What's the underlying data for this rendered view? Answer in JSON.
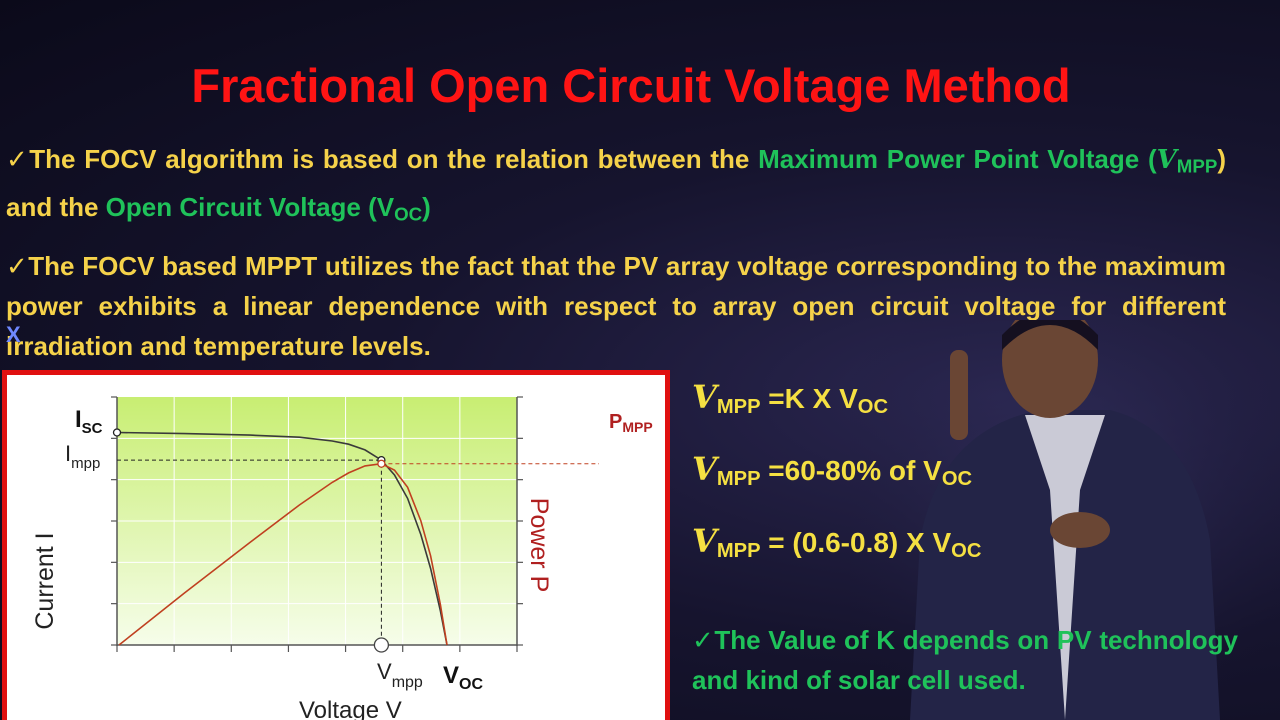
{
  "slide": {
    "title": "Fractional Open Circuit Voltage Method",
    "bullet1": {
      "check": "✓",
      "text_a": "The FOCV algorithm is based on the relation between the ",
      "text_b": "Maximum Power Point",
      "text_c": "Voltage (",
      "v_symbol": "V",
      "v_sub": "MPP",
      "text_d": ") and the ",
      "text_e": "Open Circuit Voltage (V",
      "voc_sub": "OC",
      "text_f": ")"
    },
    "bullet2": {
      "check": "✓",
      "text": "The FOCV based MPPT utilizes the fact that the PV array voltage corresponding to the maximum power exhibits a linear dependence with respect to array open circuit voltage for different irradiation and temperature levels."
    },
    "stray_mark": "X",
    "formulas": [
      {
        "v": "V",
        "sub": "MPP",
        "rest": " =K X V",
        "sub2": "OC",
        "tail": ""
      },
      {
        "v": "V",
        "sub": "MPP",
        "rest": " =60-80% of V",
        "sub2": "OC",
        "tail": ""
      },
      {
        "v": "V",
        "sub": "MPP",
        "rest": " = (0.6-0.8) X V",
        "sub2": "OC",
        "tail": ""
      }
    ],
    "note": {
      "check": "✓",
      "text": "The Value of K depends on PV technology and kind of solar cell used."
    }
  },
  "chart_data": {
    "type": "line",
    "xlabel": "Voltage V",
    "ylabel_left": "Current I",
    "ylabel_right": "Power P",
    "x_markers": [
      {
        "label": "V",
        "sub": "mpp"
      },
      {
        "label": "V",
        "sub": "OC"
      }
    ],
    "y_markers": [
      {
        "label": "I",
        "sub": "SC"
      },
      {
        "label": "I",
        "sub": "mpp"
      }
    ],
    "power_marker": {
      "label": "P",
      "sub": "MPP"
    },
    "series": [
      {
        "key": "current",
        "color": "#3a3a3a",
        "x": [
          0,
          0.2,
          0.4,
          0.55,
          0.65,
          0.7,
          0.75,
          0.8,
          0.84,
          0.88,
          0.92,
          0.95,
          0.98,
          1.0
        ],
        "y": [
          1.0,
          0.995,
          0.988,
          0.978,
          0.96,
          0.945,
          0.918,
          0.87,
          0.8,
          0.69,
          0.52,
          0.36,
          0.16,
          0.0
        ]
      },
      {
        "key": "power",
        "color": "#c04020",
        "x": [
          0,
          0.2,
          0.4,
          0.55,
          0.65,
          0.7,
          0.75,
          0.8,
          0.84,
          0.88,
          0.92,
          0.95,
          0.98,
          1.0
        ],
        "y": [
          0,
          0.245,
          0.484,
          0.659,
          0.765,
          0.81,
          0.843,
          0.853,
          0.823,
          0.742,
          0.585,
          0.42,
          0.19,
          0.0
        ]
      }
    ],
    "mpp_x": 0.8,
    "colors": {
      "plot_bg_top": "#c8ee72",
      "plot_bg_bottom": "#f6fdea",
      "power": "#c04020",
      "frame": "#e01010"
    }
  }
}
